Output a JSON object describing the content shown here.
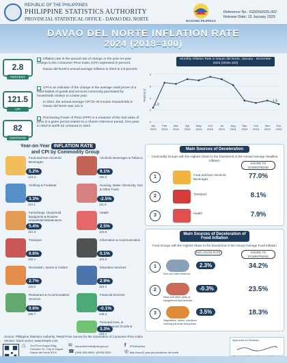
{
  "header": {
    "republic": "REPUBLIC OF THE PHILIPPINES",
    "agency": "PHILIPPINE STATISTICS AUTHORITY",
    "office": "PROVINCIAL STATISTICAL OFFICE - DAVAO DEL NORTE",
    "bagong_label": "BAGONG PILIPINAS",
    "reference_no": "Reference No.: IGDDN2025-002",
    "release_date": "Release Date: 15 January 2025"
  },
  "title": {
    "line1": "DAVAO DEL NORTE INFLATION RATE",
    "line2": "2024 (2018=100)"
  },
  "stats": [
    {
      "value": "2.8",
      "label": "PERCENT"
    },
    {
      "value": "121.5",
      "label": "CPI"
    },
    {
      "value": "82",
      "label": "CENTAVOS"
    }
  ],
  "definitions": {
    "inflation": "Inflation rate is the annual rate of change or the year-on-year change in the Consumer Price Index (CPI) expressed in percent.",
    "inflation_2": "Davao del Norte's annual average inflation in 2024 is 2.8 percent.",
    "cpi": "CPI is an indicator of the change in the average retail prices of a fixed basket of goods and services commonly purchased by households relative to a base year.",
    "cpi_2": "In 2024, the annual average CPI for All Income Households in Davao del Norte was 121.5.",
    "ppp": "Purchasing Power of Peso (PPP) is a measure of the real value of peso in a given period relative to a chosen reference period. One peso in 2018 is worth 82 centavos in 2024."
  },
  "monthly_chart_title": "Monthly Inflation Rate in Davao del Norte: January - December 2024 (2018=100)",
  "chart_data": {
    "type": "line",
    "title": "Monthly Inflation Rate in Davao del Norte: January - December 2024 (2018=100)",
    "ylabel": "PERCENT",
    "x": [
      "Jan 2024",
      "Feb 2024",
      "Mar 2024",
      "Apr 2024",
      "May 2024",
      "Jun 2024",
      "Jul 2024",
      "Aug 2024",
      "Sep 2024",
      "Oct 2024",
      "Nov 2024",
      "Dec 2024"
    ],
    "values": [
      1.2,
      3.3,
      3.2,
      3.6,
      3.5,
      3.8,
      3.6,
      3.1,
      1.8,
      1.6,
      1.8,
      1.5
    ],
    "ylim": [
      0,
      4.5
    ],
    "yticks": [
      0,
      1,
      2,
      3,
      4
    ],
    "labels": {
      "first": "1.2",
      "last": "1.5"
    }
  },
  "yoy_heading": {
    "pre": "Year-on-Year",
    "pill": "INFLATION RATE",
    "post": "and CPI by Commodity Group"
  },
  "categories": [
    {
      "name": "Food and Non-Alcoholic Beverages",
      "rate": "5.2%",
      "cpi": "124.2",
      "color": "#f2b441"
    },
    {
      "name": "Alcoholic Beverages & Tobacco",
      "rate": "9.1%",
      "cpi": "180.3",
      "color": "#b84a3a"
    },
    {
      "name": "Clothing & Footwear",
      "rate": "3.3%",
      "cpi": "114.1",
      "color": "#3a7bbf"
    },
    {
      "name": "Housing, Water, Electricity, Gas & Other Fuels",
      "rate": "-2.5%",
      "cpi": "111.8",
      "color": "#d46b6b"
    },
    {
      "name": "Furnishings, Household Equipment & Routine Household Maintenance",
      "rate": "5.4%",
      "cpi": "121.3",
      "color": "#e08b3a"
    },
    {
      "name": "Health",
      "rate": "2.5%",
      "cpi": "133.6",
      "color": "#e05050"
    },
    {
      "name": "Transport",
      "rate": "0.6%",
      "cpi": "132.1",
      "color": "#c23b3b"
    },
    {
      "name": "Information & Communication",
      "rate": "0.1%",
      "cpi": "102.2",
      "color": "#333333"
    },
    {
      "name": "Recreation, Sports & Culture",
      "rate": "2.7%",
      "cpi": "115.8",
      "color": "#e07b2b"
    },
    {
      "name": "Education Services",
      "rate": "2.9%",
      "cpi": "113.4",
      "color": "#2f5e9e"
    },
    {
      "name": "Restaurant & Accommodation Services",
      "rate": "0.6%",
      "cpi": "135.7",
      "color": "#4a9a58"
    },
    {
      "name": "Financial Services",
      "rate": "-0.1%",
      "cpi": "145.4",
      "color": "#2e9c5e"
    },
    {
      "name": "Personal Care, & Miscellaneous Goods & Services",
      "rate": "3.3%",
      "cpi": "118.4",
      "color": "#5cb85c"
    }
  ],
  "deceleration": {
    "title": "Main Sources of Deceleration",
    "subtitle": "Commodity Groups with the Highest Share to the Downtrend in the Annual Average Headline Inflation",
    "share_label": "SHARE TO DOWNTREND",
    "items": [
      {
        "rank": "1",
        "name": "Food and Non-Alcoholic Beverages",
        "share": "77.0%"
      },
      {
        "rank": "2",
        "name": "Transport",
        "share": "8.1%"
      },
      {
        "rank": "3",
        "name": "Health",
        "share": "7.9%"
      }
    ]
  },
  "food_deceleration": {
    "title": "Main Sources of Deceleration of Food Inflation",
    "subtitle": "Food Groups with the Highest Share to the Downtrend in the Annual Average Food Inflation",
    "rate_label": "INFLATION RATE",
    "share_label": "SHARE TO DOWNTREND",
    "items": [
      {
        "rank": "1",
        "name": "Fish and other seafood",
        "rate": "2.3%",
        "share": "34.2%"
      },
      {
        "rank": "2",
        "name": "Meat and other parts of slaughtered land animals",
        "rate": "-0.3%",
        "share": "23.5%"
      },
      {
        "rank": "3",
        "name": "Vegetables, tubers, plantains, cooking bananas and pulses",
        "rate": "3.5%",
        "share": "18.3%"
      }
    ]
  },
  "footer": {
    "sources": "Source: Philippine Statistics Authority, Retail Price Survey for the Generation of Consumer Price Index",
    "vectors": "Vectors: Stock vector, www.freepik.com",
    "address": "2nd Floor Angus Bldg., Complex St., City of Tagum, Davao del Norte 8100",
    "email": "davaodelnorte@psa.gov.ph",
    "phone": "(084) 655-9605 / (0928) 8920...",
    "facebook": "/PSADavNor",
    "website": "http://rsso11.psa.gov.ph/davao-del-norte",
    "approved": "Approved for Release:",
    "signatory_title": "(Supervising Statistical Specialist) Officer-in-Charge"
  },
  "colors": {
    "navy": "#1f3b5c",
    "teal": "#2d7d6f",
    "sky": "#9fc3e4"
  }
}
